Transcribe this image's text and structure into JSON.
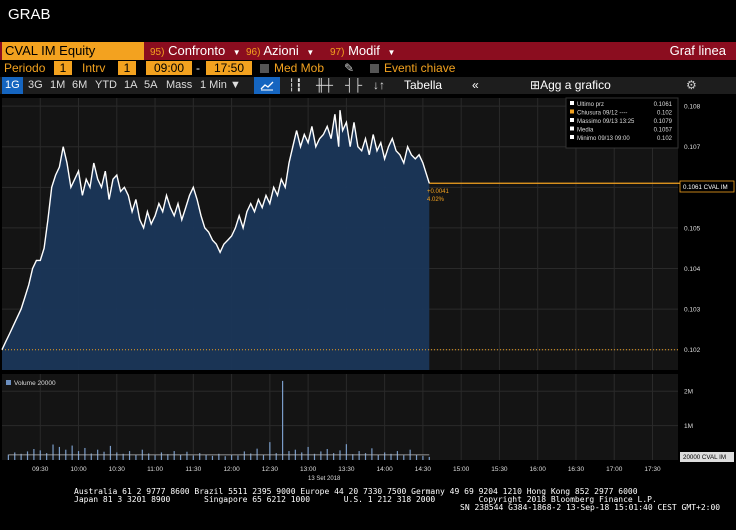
{
  "window": {
    "title": "GRAB"
  },
  "toolbar1": {
    "ticker": "CVAL IM Equity",
    "menus": [
      {
        "num": "95)",
        "label": "Confronto",
        "dropdown": true
      },
      {
        "num": "96)",
        "label": "Azioni",
        "dropdown": true
      },
      {
        "num": "97)",
        "label": "Modif",
        "dropdown": true
      }
    ],
    "right_label": "Graf linea"
  },
  "toolbar2": {
    "periodo_label": "Periodo",
    "periodo_value": "1",
    "intrv_label": "Intrv",
    "intrv_value": "1",
    "time_start": "09:00",
    "time_sep": "-",
    "time_end": "17:50",
    "med_mob": "Med Mob",
    "eventi": "Eventi chiave"
  },
  "toolbar3": {
    "periods": [
      "1G",
      "3G",
      "1M",
      "6M",
      "YTD",
      "1A",
      "5A",
      "Mass"
    ],
    "selected_period": "1G",
    "interval": "1 Min",
    "tabella": "Tabella",
    "agg": "Agg a grafico"
  },
  "legend": [
    {
      "label": "Ultimo prz",
      "value": "0.1061",
      "color": "#ffffff"
    },
    {
      "label": "Chiusura 09/12 ----",
      "value": "0.102",
      "color": "#f3a21f"
    },
    {
      "label": "Massimo 09/13 13:25",
      "value": "0.1079",
      "color": "#ffffff"
    },
    {
      "label": "Media",
      "value": "0.1057",
      "color": "#ffffff"
    },
    {
      "label": "Minimo 09/13 09:00",
      "value": "0.102",
      "color": "#ffffff"
    }
  ],
  "annotations": {
    "change": "+0.0041",
    "change_pct": "4.02%",
    "last_tag": "0.1061 CVAL IM",
    "volume_tag": "20000 CVAL IM",
    "volume_label": "Volume 20000",
    "date_label": "13 Set 2018"
  },
  "chart_data": {
    "type": "line",
    "price_axis": {
      "ticks": [
        0.102,
        0.103,
        0.104,
        0.105,
        0.106,
        0.107,
        0.108
      ],
      "ylim": [
        0.1015,
        0.1082
      ]
    },
    "volume_axis": {
      "ticks": [
        "1M",
        "2M"
      ],
      "tick_values": [
        1000000,
        2000000
      ],
      "ylim": [
        0,
        2500000
      ]
    },
    "x_ticks": [
      "09:30",
      "10:00",
      "10:30",
      "11:00",
      "11:30",
      "12:00",
      "12:30",
      "13:00",
      "13:30",
      "14:00",
      "14:30",
      "15:00",
      "15:30",
      "16:00",
      "16:30",
      "17:00",
      "17:30"
    ],
    "xlim": [
      "09:00",
      "17:50"
    ],
    "reference_close": 0.102,
    "last_price": 0.1061,
    "series_price": [
      [
        "09:00",
        0.102
      ],
      [
        "09:03",
        0.1022
      ],
      [
        "09:06",
        0.1024
      ],
      [
        "09:09",
        0.1026
      ],
      [
        "09:12",
        0.1028
      ],
      [
        "09:15",
        0.103
      ],
      [
        "09:18",
        0.1033
      ],
      [
        "09:21",
        0.1036
      ],
      [
        "09:24",
        0.104
      ],
      [
        "09:27",
        0.1042
      ],
      [
        "09:30",
        0.1042
      ],
      [
        "09:33",
        0.1045
      ],
      [
        "09:36",
        0.1052
      ],
      [
        "09:39",
        0.106
      ],
      [
        "09:42",
        0.1063
      ],
      [
        "09:45",
        0.1065
      ],
      [
        "09:48",
        0.107
      ],
      [
        "09:51",
        0.1066
      ],
      [
        "09:54",
        0.106
      ],
      [
        "09:57",
        0.1062
      ],
      [
        "10:00",
        0.1064
      ],
      [
        "10:03",
        0.1058
      ],
      [
        "10:06",
        0.1062
      ],
      [
        "10:09",
        0.106
      ],
      [
        "10:12",
        0.1066
      ],
      [
        "10:15",
        0.1062
      ],
      [
        "10:18",
        0.106
      ],
      [
        "10:21",
        0.1064
      ],
      [
        "10:24",
        0.1057
      ],
      [
        "10:27",
        0.1062
      ],
      [
        "10:30",
        0.1063
      ],
      [
        "10:33",
        0.1059
      ],
      [
        "10:36",
        0.106
      ],
      [
        "10:39",
        0.1058
      ],
      [
        "10:42",
        0.1054
      ],
      [
        "10:45",
        0.1057
      ],
      [
        "10:48",
        0.1052
      ],
      [
        "10:51",
        0.105
      ],
      [
        "10:54",
        0.1054
      ],
      [
        "10:57",
        0.1051
      ],
      [
        "11:00",
        0.1053
      ],
      [
        "11:03",
        0.1056
      ],
      [
        "11:06",
        0.1054
      ],
      [
        "11:09",
        0.1058
      ],
      [
        "11:12",
        0.1055
      ],
      [
        "11:15",
        0.1053
      ],
      [
        "11:18",
        0.1056
      ],
      [
        "11:21",
        0.1052
      ],
      [
        "11:24",
        0.1055
      ],
      [
        "11:27",
        0.1058
      ],
      [
        "11:30",
        0.106
      ],
      [
        "11:33",
        0.1057
      ],
      [
        "11:36",
        0.1053
      ],
      [
        "11:39",
        0.105
      ],
      [
        "11:42",
        0.1049
      ],
      [
        "11:45",
        0.1047
      ],
      [
        "11:48",
        0.1046
      ],
      [
        "11:51",
        0.1044
      ],
      [
        "11:54",
        0.1046
      ],
      [
        "11:57",
        0.1047
      ],
      [
        "12:00",
        0.1048
      ],
      [
        "12:03",
        0.105
      ],
      [
        "12:06",
        0.1053
      ],
      [
        "12:09",
        0.105
      ],
      [
        "12:12",
        0.1054
      ],
      [
        "12:15",
        0.1056
      ],
      [
        "12:18",
        0.1054
      ],
      [
        "12:21",
        0.1057
      ],
      [
        "12:24",
        0.1055
      ],
      [
        "12:27",
        0.1058
      ],
      [
        "12:30",
        0.1056
      ],
      [
        "12:33",
        0.106
      ],
      [
        "12:36",
        0.1058
      ],
      [
        "12:39",
        0.1062
      ],
      [
        "12:42",
        0.106
      ],
      [
        "12:45",
        0.1066
      ],
      [
        "12:48",
        0.107
      ],
      [
        "12:51",
        0.1074
      ],
      [
        "12:54",
        0.107
      ],
      [
        "12:57",
        0.1073
      ],
      [
        "13:00",
        0.1071
      ],
      [
        "13:03",
        0.1075
      ],
      [
        "13:06",
        0.107
      ],
      [
        "13:09",
        0.1072
      ],
      [
        "13:12",
        0.1073
      ],
      [
        "13:15",
        0.1075
      ],
      [
        "13:18",
        0.1072
      ],
      [
        "13:21",
        0.1078
      ],
      [
        "13:24",
        0.107
      ],
      [
        "13:25",
        0.1079
      ],
      [
        "13:27",
        0.1074
      ],
      [
        "13:30",
        0.1076
      ],
      [
        "13:33",
        0.107
      ],
      [
        "13:36",
        0.1076
      ],
      [
        "13:39",
        0.107
      ],
      [
        "13:42",
        0.1069
      ],
      [
        "13:45",
        0.1072
      ],
      [
        "13:48",
        0.1068
      ],
      [
        "13:51",
        0.1073
      ],
      [
        "13:54",
        0.1069
      ],
      [
        "13:57",
        0.1071
      ],
      [
        "14:00",
        0.1067
      ],
      [
        "14:03",
        0.107
      ],
      [
        "14:06",
        0.1072
      ],
      [
        "14:09",
        0.1069
      ],
      [
        "14:12",
        0.1068
      ],
      [
        "14:15",
        0.1066
      ],
      [
        "14:18",
        0.107
      ],
      [
        "14:21",
        0.1068
      ],
      [
        "14:24",
        0.1067
      ],
      [
        "14:27",
        0.1068
      ],
      [
        "14:30",
        0.1066
      ],
      [
        "14:33",
        0.1063
      ],
      [
        "14:35",
        0.1061
      ]
    ],
    "series_volume": [
      [
        "09:05",
        160000
      ],
      [
        "09:10",
        220000
      ],
      [
        "09:15",
        180000
      ],
      [
        "09:20",
        250000
      ],
      [
        "09:25",
        320000
      ],
      [
        "09:30",
        280000
      ],
      [
        "09:35",
        200000
      ],
      [
        "09:40",
        450000
      ],
      [
        "09:45",
        380000
      ],
      [
        "09:50",
        300000
      ],
      [
        "09:55",
        420000
      ],
      [
        "10:00",
        260000
      ],
      [
        "10:05",
        350000
      ],
      [
        "10:10",
        190000
      ],
      [
        "10:15",
        300000
      ],
      [
        "10:20",
        240000
      ],
      [
        "10:25",
        410000
      ],
      [
        "10:30",
        220000
      ],
      [
        "10:35",
        180000
      ],
      [
        "10:40",
        260000
      ],
      [
        "10:45",
        150000
      ],
      [
        "10:50",
        300000
      ],
      [
        "10:55",
        190000
      ],
      [
        "11:00",
        140000
      ],
      [
        "11:05",
        220000
      ],
      [
        "11:10",
        170000
      ],
      [
        "11:15",
        260000
      ],
      [
        "11:20",
        160000
      ],
      [
        "11:25",
        240000
      ],
      [
        "11:30",
        130000
      ],
      [
        "11:35",
        200000
      ],
      [
        "11:40",
        150000
      ],
      [
        "11:45",
        120000
      ],
      [
        "11:50",
        180000
      ],
      [
        "11:55",
        110000
      ],
      [
        "12:00",
        160000
      ],
      [
        "12:05",
        130000
      ],
      [
        "12:10",
        250000
      ],
      [
        "12:15",
        190000
      ],
      [
        "12:20",
        330000
      ],
      [
        "12:25",
        160000
      ],
      [
        "12:30",
        520000
      ],
      [
        "12:35",
        200000
      ],
      [
        "12:40",
        2300000
      ],
      [
        "12:45",
        260000
      ],
      [
        "12:50",
        300000
      ],
      [
        "12:55",
        220000
      ],
      [
        "13:00",
        380000
      ],
      [
        "13:05",
        180000
      ],
      [
        "13:10",
        250000
      ],
      [
        "13:15",
        320000
      ],
      [
        "13:20",
        200000
      ],
      [
        "13:25",
        280000
      ],
      [
        "13:30",
        460000
      ],
      [
        "13:35",
        170000
      ],
      [
        "13:40",
        260000
      ],
      [
        "13:45",
        200000
      ],
      [
        "13:50",
        340000
      ],
      [
        "13:55",
        150000
      ],
      [
        "14:00",
        220000
      ],
      [
        "14:05",
        180000
      ],
      [
        "14:10",
        260000
      ],
      [
        "14:15",
        140000
      ],
      [
        "14:20",
        300000
      ],
      [
        "14:25",
        160000
      ],
      [
        "14:30",
        120000
      ],
      [
        "14:35",
        90000
      ]
    ],
    "volume_average": 150000
  },
  "footer": {
    "line1": "Australia 61 2 9777 8600 Brazil 5511 2395 9000 Europe 44 20 7330 7500 Germany 49 69 9204 1210 Hong Kong 852 2977 6000",
    "line2": "Japan 81 3 3201 8900       Singapore 65 6212 1000       U.S. 1 212 318 2000         Copyright 2018 Bloomberg Finance L.P.",
    "line3": "SN 238544 G384-1868-2 13-Sep-18 15:01:40 CEST GMT+2:00"
  }
}
